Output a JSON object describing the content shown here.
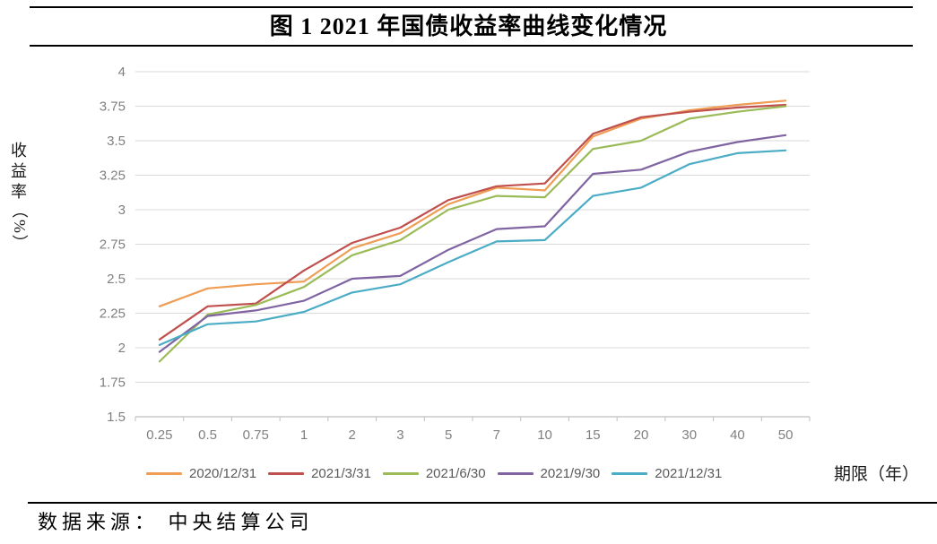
{
  "page": {
    "title": "图 1 2021 年国债收益率曲线变化情况",
    "source": "数据来源： 中央结算公司",
    "xaxis_unit_label": "期限（年）",
    "yaxis_title_chars": [
      "收",
      "益",
      "率",
      "（",
      "%",
      "）"
    ]
  },
  "chart_data": {
    "type": "line",
    "title": "图 1 2021 年国债收益率曲线变化情况",
    "xlabel": "期限（年）",
    "ylabel": "收益率（%）",
    "categories": [
      "0.25",
      "0.5",
      "0.75",
      "1",
      "2",
      "3",
      "5",
      "7",
      "10",
      "15",
      "20",
      "30",
      "40",
      "50"
    ],
    "yticks": [
      "4",
      "3.75",
      "3.5",
      "3.25",
      "3",
      "2.75",
      "2.5",
      "2.25",
      "2",
      "1.75",
      "1.5"
    ],
    "ylim": [
      1.5,
      4.0
    ],
    "ytick_step": 0.25,
    "grid": true,
    "legend_position": "bottom",
    "series": [
      {
        "name": "2020/12/31",
        "color": "#EF9D55",
        "values": [
          2.3,
          2.43,
          2.46,
          2.48,
          2.72,
          2.83,
          3.04,
          3.16,
          3.14,
          3.53,
          3.66,
          3.72,
          3.76,
          3.79
        ]
      },
      {
        "name": "2021/3/31",
        "color": "#C0504D",
        "values": [
          2.06,
          2.3,
          2.32,
          2.56,
          2.76,
          2.87,
          3.07,
          3.17,
          3.19,
          3.55,
          3.67,
          3.71,
          3.74,
          3.76
        ]
      },
      {
        "name": "2021/6/30",
        "color": "#9BBB59",
        "values": [
          1.9,
          2.24,
          2.31,
          2.44,
          2.67,
          2.78,
          3.0,
          3.1,
          3.09,
          3.44,
          3.5,
          3.66,
          3.71,
          3.75
        ]
      },
      {
        "name": "2021/9/30",
        "color": "#8064A2",
        "values": [
          1.97,
          2.23,
          2.27,
          2.34,
          2.5,
          2.52,
          2.71,
          2.86,
          2.88,
          3.26,
          3.29,
          3.42,
          3.49,
          3.54
        ]
      },
      {
        "name": "2021/12/31",
        "color": "#4BACC6",
        "values": [
          2.02,
          2.17,
          2.19,
          2.26,
          2.4,
          2.46,
          2.62,
          2.77,
          2.78,
          3.1,
          3.16,
          3.33,
          3.41,
          3.43
        ]
      }
    ],
    "colors": {
      "gridline": "#D9D9D9",
      "axis_line": "#BFBFBF",
      "tick_label": "#7F7F7F",
      "legend_label": "#595959"
    }
  }
}
